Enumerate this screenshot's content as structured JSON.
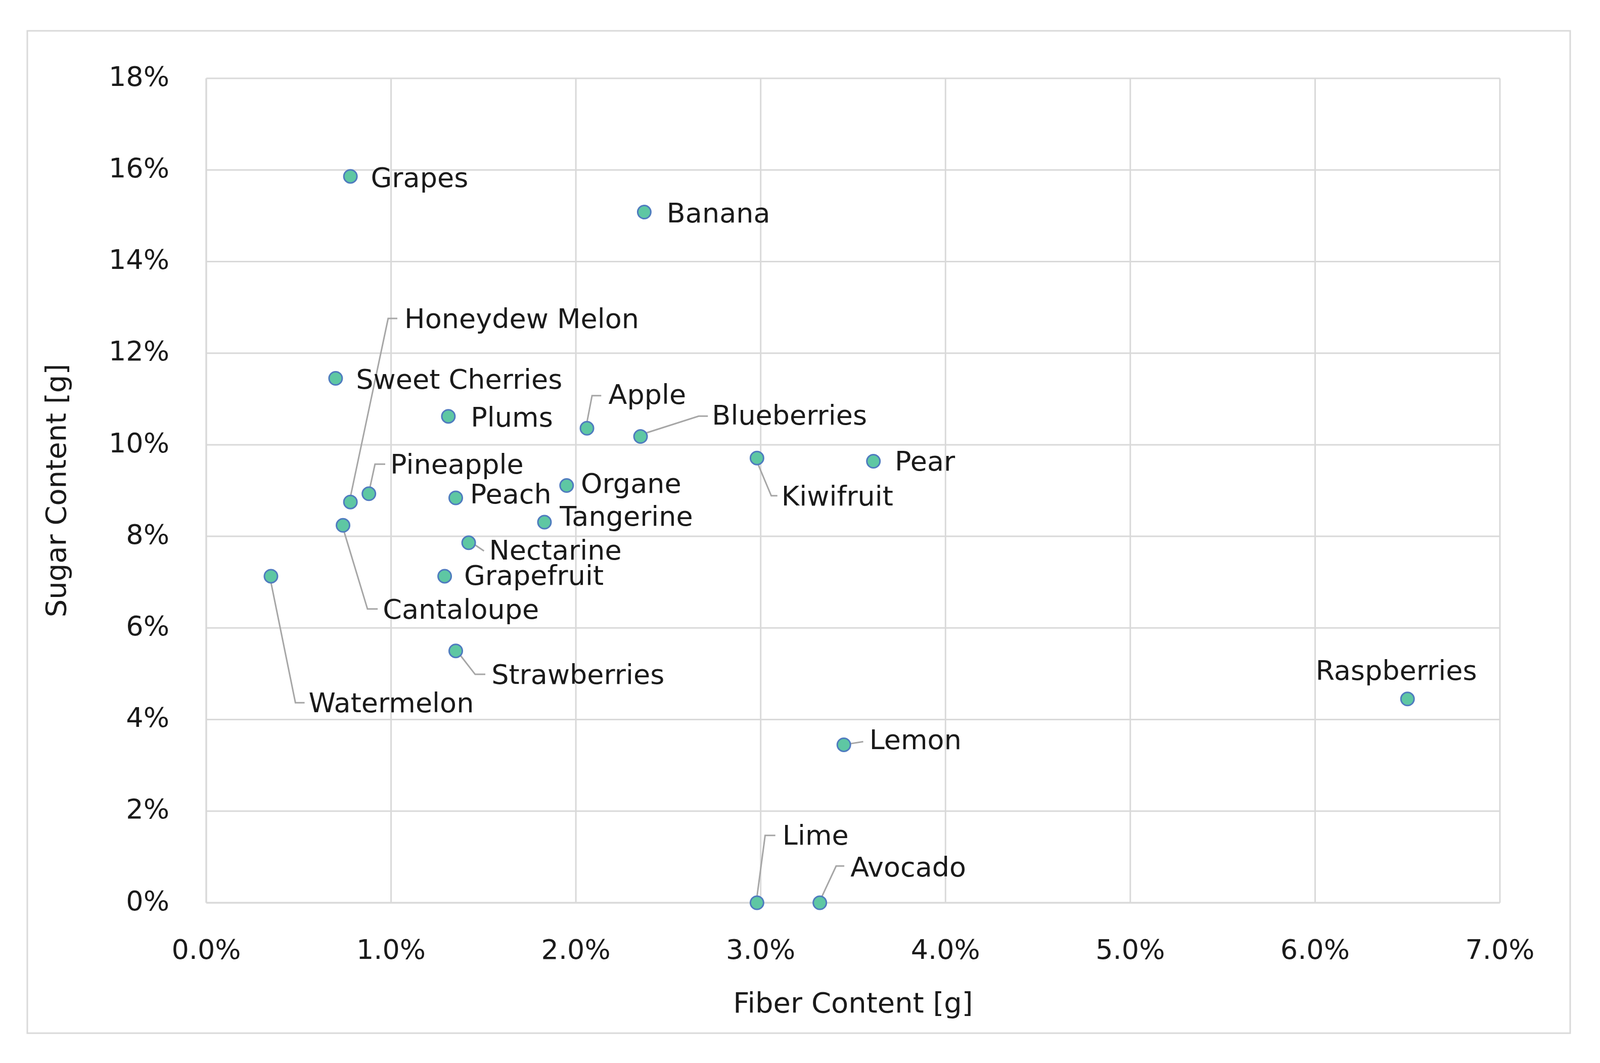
{
  "chart_data": {
    "type": "scatter",
    "x_label": "Fiber Content [g]",
    "y_label": "Sugar Content [g]",
    "color": "#5ec7a3",
    "marker": "circle",
    "grid": true,
    "labels": [
      "Grapes",
      "Banana",
      "Honeydew Melon",
      "Sweet Cherries",
      "Plums",
      "Apple",
      "Blueberries",
      "Kiwifruit",
      "Pear",
      "Pineapple",
      "Organe",
      "Peach",
      "Tangerine",
      "Cantaloupe",
      "Nectarine",
      "Grapefruit",
      "Watermelon",
      "Strawberries",
      "Raspberries",
      "Lemon",
      "Lime",
      "Avocado"
    ],
    "x": [
      0.78,
      2.37,
      0.78,
      0.7,
      1.31,
      2.06,
      2.35,
      2.98,
      3.61,
      0.88,
      1.95,
      1.35,
      1.83,
      0.74,
      1.42,
      1.29,
      0.35,
      1.35,
      6.5,
      3.45,
      2.98,
      3.32
    ],
    "values": [
      15.86,
      15.08,
      8.75,
      11.45,
      10.62,
      10.36,
      10.18,
      9.71,
      9.64,
      8.93,
      9.11,
      8.84,
      8.31,
      8.24,
      7.86,
      7.13,
      7.13,
      5.5,
      4.45,
      3.45,
      0.0,
      0.0
    ],
    "xlim": [
      0,
      7
    ],
    "ylim": [
      0,
      18
    ],
    "xticks": [
      {
        "value": 0,
        "label": "0.0%"
      },
      {
        "value": 1,
        "label": "1.0%"
      },
      {
        "value": 2,
        "label": "2.0%"
      },
      {
        "value": 3,
        "label": "3.0%"
      },
      {
        "value": 4,
        "label": "4.0%"
      },
      {
        "value": 5,
        "label": "5.0%"
      },
      {
        "value": 6,
        "label": "6.0%"
      },
      {
        "value": 7,
        "label": "7.0%"
      }
    ],
    "yticks": [
      {
        "value": 0,
        "label": "0%"
      },
      {
        "value": 2,
        "label": "2%"
      },
      {
        "value": 4,
        "label": "4%"
      },
      {
        "value": 6,
        "label": "6%"
      },
      {
        "value": 8,
        "label": "8%"
      },
      {
        "value": 10,
        "label": "10%"
      },
      {
        "value": 12,
        "label": "12%"
      },
      {
        "value": 14,
        "label": "14%"
      },
      {
        "value": 16,
        "label": "16%"
      },
      {
        "value": 18,
        "label": "18%"
      }
    ]
  }
}
